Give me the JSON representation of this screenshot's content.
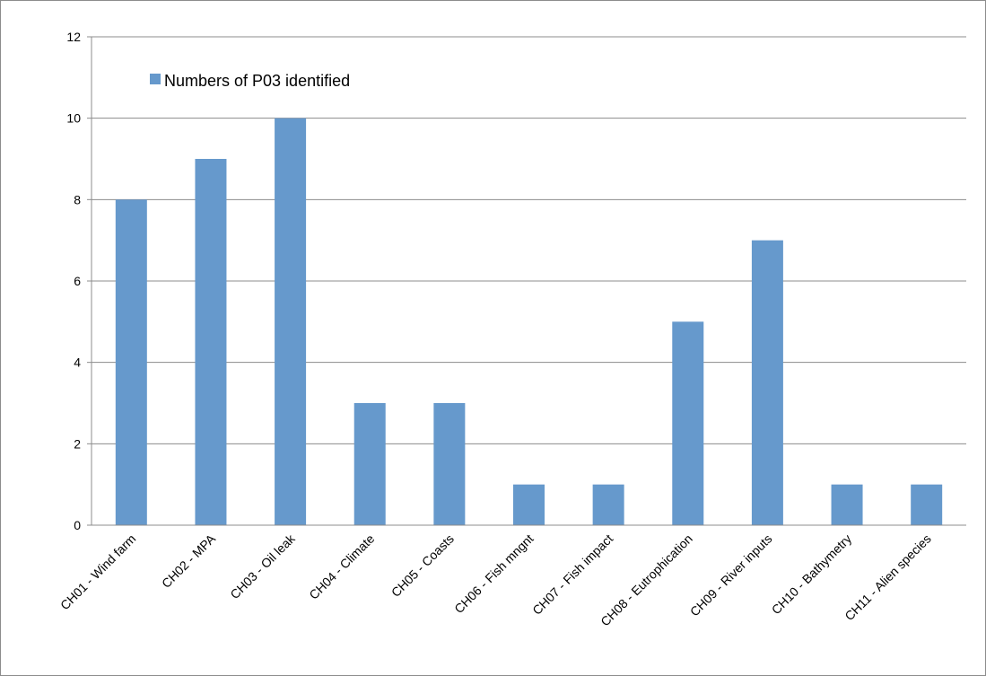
{
  "chart_data": {
    "type": "bar",
    "categories": [
      "CH01 - Wind farm",
      "CH02 - MPA",
      "CH03 - Oil leak",
      "CH04 - Climate",
      "CH05 - Coasts",
      "CH06 - Fish mngnt",
      "CH07 - Fish impact",
      "CH08 - Eutrophication",
      "CH09 - River inputs",
      "CH10 - Bathymetry",
      "CH11 - Alien species"
    ],
    "series": [
      {
        "name": "Numbers of P03 identified",
        "values": [
          8,
          9,
          10,
          3,
          3,
          1,
          1,
          5,
          7,
          1,
          1
        ]
      }
    ],
    "title": "",
    "xlabel": "",
    "ylabel": "",
    "ylim": [
      0,
      12
    ],
    "yticks": [
      0,
      2,
      4,
      6,
      8,
      10,
      12
    ],
    "grid": true,
    "legend": "top-left inside",
    "colors": {
      "bar": "#6699cc",
      "grid": "#8c8c8c",
      "axis": "#8c8c8c"
    }
  }
}
